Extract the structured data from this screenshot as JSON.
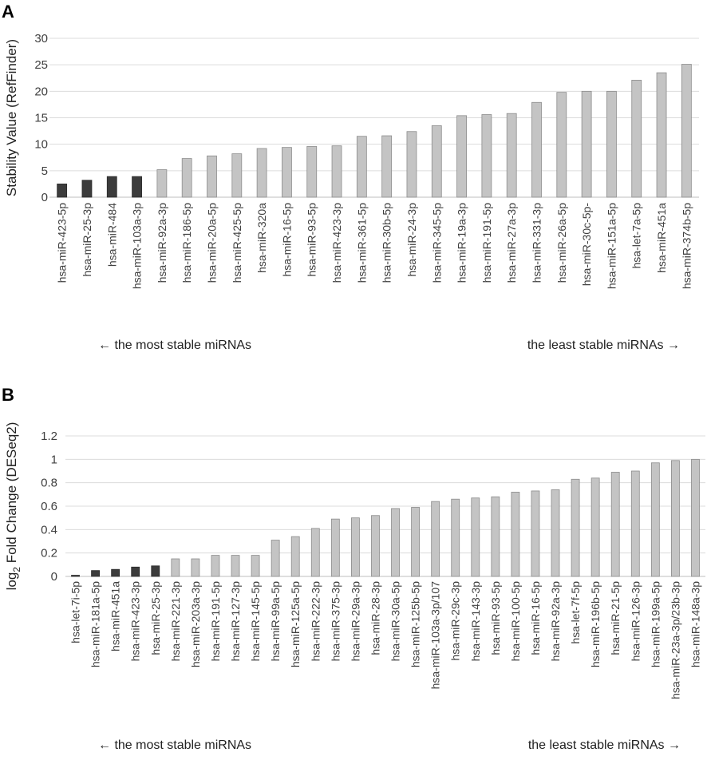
{
  "chart_data": [
    {
      "panel": "A",
      "type": "bar",
      "ylabel": "Stability Value (RefFinder)",
      "ylim": [
        0,
        30
      ],
      "yticks": [
        0,
        5,
        10,
        15,
        20,
        25,
        30
      ],
      "grid": true,
      "categories": [
        "hsa-miR-423-5p",
        "hsa-miR-25-3p",
        "hsa-miR-484",
        "hsa-miR-103a-3p",
        "hsa-miR-92a-3p",
        "hsa-miR-186-5p",
        "hsa-miR-20a-5p",
        "hsa-miR-425-5p",
        "hsa-miR-320a",
        "hsa-miR-16-5p",
        "hsa-miR-93-5p",
        "hsa-miR-423-3p",
        "hsa-miR-361-5p",
        "hsa-miR-30b-5p",
        "hsa-miR-24-3p",
        "hsa-miR-345-5p",
        "hsa-miR-19a-3p",
        "hsa-miR-191-5p",
        "hsa-miR-27a-3p",
        "hsa-miR-331-3p",
        "hsa-miR-26a-5p",
        "hsa-miR-30c-5p-",
        "hsa-miR-151a-5p",
        "hsa-let-7a-5p",
        "hsa-miR-451a",
        "hsa-miR-374b-5p"
      ],
      "values": [
        2.5,
        3.2,
        3.9,
        3.9,
        5.2,
        7.3,
        7.8,
        8.2,
        9.2,
        9.4,
        9.6,
        9.7,
        11.5,
        11.6,
        12.4,
        13.5,
        15.4,
        15.6,
        15.8,
        17.9,
        19.8,
        20.0,
        20.0,
        22.1,
        23.5,
        25.1
      ],
      "highlight_count": 4,
      "colors": {
        "highlight": "#3c3c3c",
        "normal": "#c4c4c4"
      },
      "annotations": {
        "left": "← the most stable miRNAs",
        "right": "the least stable miRNAs →"
      }
    },
    {
      "panel": "B",
      "type": "bar",
      "ylabel_base": "log",
      "ylabel_sub": "2",
      "ylabel_rest": " Fold Change (DESeq2)",
      "ylim": [
        0,
        1.2
      ],
      "yticks": [
        "0",
        "0.2",
        "0.4",
        "0.6",
        "0.8",
        "1",
        "1.2"
      ],
      "grid": true,
      "categories": [
        "hsa-let-7i-5p",
        "hsa-miR-181a-5p",
        "hsa-miR-451a",
        "hsa-miR-423-3p",
        "hsa-miR-25-3p",
        "hsa-miR-221-3p",
        "hsa-miR-203a-3p",
        "hsa-miR-191-5p",
        "hsa-miR-127-3p",
        "hsa-miR-145-5p",
        "hsa-miR-99a-5p",
        "hsa-miR-125a-5p",
        "hsa-miR-222-3p",
        "hsa-miR-375-3p",
        "hsa-miR-29a-3p",
        "hsa-miR-28-3p",
        "hsa-miR-30a-5p",
        "hsa-miR-125b-5p",
        "hsa-miR-103a-3p/107",
        "hsa-miR-29c-3p",
        "hsa-miR-143-3p",
        "hsa-miR-93-5p",
        "hsa-miR-100-5p",
        "hsa-miR-16-5p",
        "hsa-miR-92a-3p",
        "hsa-let-7f-5p",
        "hsa-miR-196b-5p",
        "hsa-miR-21-5p",
        "hsa-miR-126-3p",
        "hsa-miR-199a-5p",
        "hsa-miR-23a-3p/23b-3p",
        "hsa-miR-148a-3p"
      ],
      "values": [
        0.01,
        0.05,
        0.06,
        0.08,
        0.09,
        0.15,
        0.15,
        0.18,
        0.18,
        0.18,
        0.31,
        0.34,
        0.41,
        0.49,
        0.5,
        0.52,
        0.58,
        0.59,
        0.64,
        0.66,
        0.67,
        0.68,
        0.72,
        0.73,
        0.74,
        0.83,
        0.84,
        0.89,
        0.9,
        0.97,
        0.99,
        1.0
      ],
      "highlight_count": 5,
      "colors": {
        "highlight": "#3c3c3c",
        "normal": "#c4c4c4"
      },
      "annotations": {
        "left": "← the most stable miRNAs",
        "right": "the least stable miRNAs →"
      }
    }
  ]
}
